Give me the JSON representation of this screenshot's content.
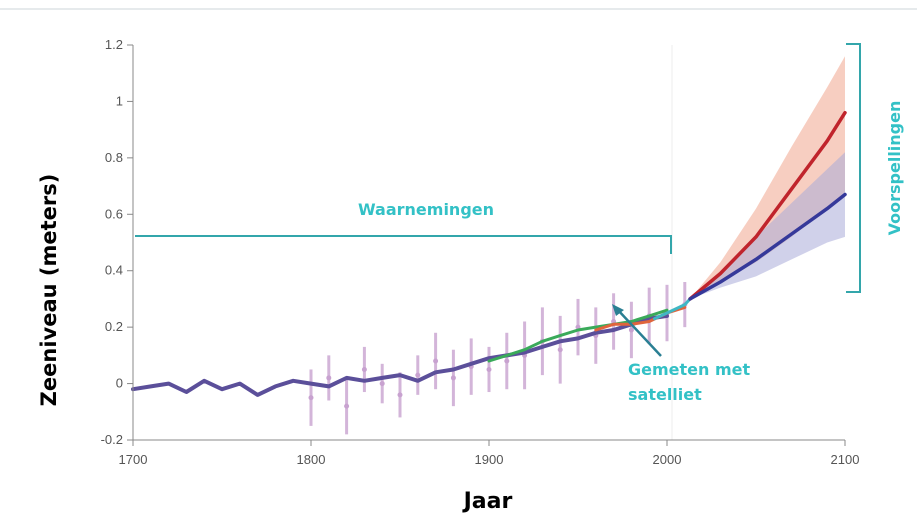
{
  "chart_data": {
    "type": "line",
    "xlabel": "Jaar",
    "ylabel": "Zeeniveau (meters)",
    "xlim": [
      1700,
      2100
    ],
    "ylim": [
      -0.2,
      1.2
    ],
    "x_ticks": [
      "1700",
      "1800",
      "1900",
      "2000",
      "2100"
    ],
    "y_ticks": [
      "-0.2",
      "0",
      "0.2",
      "0.4",
      "0.6",
      "0.8",
      "1",
      "1.2"
    ],
    "grid": false,
    "annotations": {
      "observations": "Waarnemingen",
      "projections": "Voorspellingen",
      "satellite_line1": "Gemeten met",
      "satellite_line2": "satelliet"
    },
    "series": [
      {
        "color": "#5b4f9a",
        "x": [
          1700,
          1710,
          1720,
          1730,
          1740,
          1750,
          1760,
          1770,
          1780,
          1790,
          1800,
          1810,
          1820,
          1830,
          1840,
          1850,
          1860,
          1870,
          1880,
          1890,
          1900,
          1910,
          1920,
          1930,
          1940,
          1950,
          1960,
          1970,
          1980,
          1990,
          2000
        ],
        "y": [
          -0.02,
          -0.01,
          0.0,
          -0.03,
          0.01,
          -0.02,
          0.0,
          -0.04,
          -0.01,
          0.01,
          0.0,
          -0.01,
          0.02,
          0.01,
          0.02,
          0.03,
          0.01,
          0.04,
          0.05,
          0.07,
          0.09,
          0.1,
          0.11,
          0.13,
          0.15,
          0.16,
          0.18,
          0.19,
          0.21,
          0.23,
          0.24
        ]
      },
      {
        "color": "#c8a2d0",
        "x": [
          1800,
          1810,
          1820,
          1830,
          1840,
          1850,
          1860,
          1870,
          1880,
          1890,
          1900,
          1910,
          1920,
          1930,
          1940,
          1950,
          1960,
          1970,
          1980,
          1990,
          2000,
          2010
        ],
        "y": [
          -0.05,
          0.02,
          -0.08,
          0.05,
          0.0,
          -0.04,
          0.03,
          0.08,
          0.02,
          0.06,
          0.05,
          0.08,
          0.1,
          0.15,
          0.12,
          0.2,
          0.17,
          0.22,
          0.19,
          0.24,
          0.25,
          0.28
        ],
        "err": [
          0.1,
          0.08,
          0.1,
          0.08,
          0.07,
          0.08,
          0.07,
          0.1,
          0.1,
          0.1,
          0.08,
          0.1,
          0.12,
          0.12,
          0.12,
          0.1,
          0.1,
          0.1,
          0.1,
          0.1,
          0.1,
          0.08
        ]
      },
      {
        "color": "#3aaa5a",
        "x": [
          1900,
          1910,
          1920,
          1930,
          1940,
          1950,
          1960,
          1970,
          1980,
          1990,
          2000
        ],
        "y": [
          0.08,
          0.1,
          0.12,
          0.15,
          0.17,
          0.19,
          0.2,
          0.21,
          0.22,
          0.24,
          0.26
        ]
      },
      {
        "color": "#e0643c",
        "x": [
          1960,
          1970,
          1980,
          1990,
          2000,
          2010
        ],
        "y": [
          0.19,
          0.21,
          0.21,
          0.22,
          0.25,
          0.27
        ]
      },
      {
        "color": "#3fb7c4",
        "x": [
          1993,
          2000,
          2010,
          2013
        ],
        "y": [
          0.23,
          0.25,
          0.28,
          0.3
        ]
      },
      {
        "color": "#c0242c",
        "band_color": "#f0a58e",
        "x": [
          2013,
          2030,
          2050,
          2070,
          2090,
          2100
        ],
        "y": [
          0.3,
          0.39,
          0.52,
          0.69,
          0.86,
          0.96
        ],
        "lower": [
          0.3,
          0.36,
          0.43,
          0.52,
          0.62,
          0.68
        ],
        "upper": [
          0.3,
          0.43,
          0.62,
          0.84,
          1.05,
          1.16
        ]
      },
      {
        "color": "#35399a",
        "band_color": "#a9acd8",
        "x": [
          2013,
          2030,
          2050,
          2070,
          2090,
          2100
        ],
        "y": [
          0.3,
          0.36,
          0.44,
          0.53,
          0.62,
          0.67
        ],
        "lower": [
          0.3,
          0.34,
          0.38,
          0.44,
          0.5,
          0.52
        ],
        "upper": [
          0.3,
          0.39,
          0.52,
          0.64,
          0.76,
          0.82
        ]
      }
    ]
  }
}
